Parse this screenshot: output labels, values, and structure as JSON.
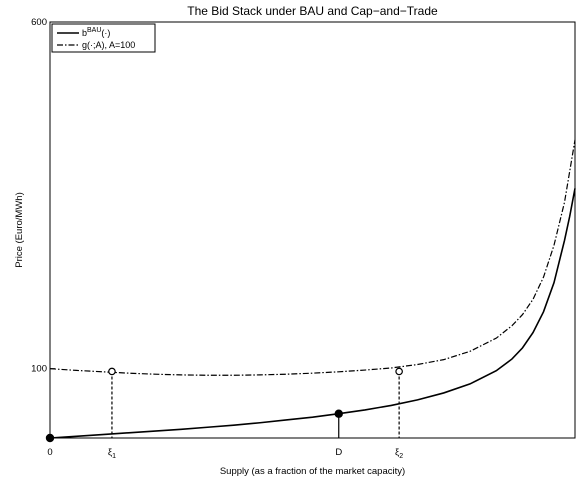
{
  "chart_data": {
    "type": "line",
    "title": "The Bid Stack under BAU and Cap−and−Trade",
    "xlabel": "Supply (as a fraction of the market capacity)",
    "ylabel": "Price (Euro/MWh)",
    "xlim": [
      0,
      1
    ],
    "ylim": [
      0,
      600
    ],
    "yticks": [
      {
        "value": 100,
        "label": "100"
      },
      {
        "value": 600,
        "label": "600"
      }
    ],
    "xticks": [
      {
        "value": 0,
        "label": "0"
      },
      {
        "value": 0.118,
        "label": "ξ",
        "sub": "1"
      },
      {
        "value": 0.55,
        "label": "D"
      },
      {
        "value": 0.665,
        "label": "ξ",
        "sub": "2"
      }
    ],
    "series": [
      {
        "name": "b",
        "name_sup": "BAU",
        "name_suffix": "(·)",
        "style": "solid",
        "x": [
          0,
          0.05,
          0.1,
          0.15,
          0.2,
          0.25,
          0.3,
          0.35,
          0.4,
          0.45,
          0.5,
          0.55,
          0.6,
          0.65,
          0.7,
          0.75,
          0.8,
          0.85,
          0.88,
          0.9,
          0.92,
          0.94,
          0.96,
          0.98,
          0.99,
          1.0
        ],
        "y": [
          0,
          2.5,
          5,
          7.5,
          10,
          12.5,
          15.5,
          18.5,
          22,
          26,
          30,
          35,
          40.5,
          47,
          55,
          65,
          78,
          97,
          114,
          130,
          152,
          182,
          224,
          285,
          320,
          360
        ]
      },
      {
        "name": "g(·;A), A=100",
        "style": "dashdot",
        "x": [
          0,
          0.05,
          0.1,
          0.15,
          0.2,
          0.25,
          0.3,
          0.35,
          0.4,
          0.45,
          0.5,
          0.55,
          0.6,
          0.65,
          0.7,
          0.75,
          0.8,
          0.85,
          0.88,
          0.9,
          0.92,
          0.94,
          0.96,
          0.98,
          0.99,
          1.0
        ],
        "y": [
          100,
          97.5,
          95.5,
          93.5,
          92,
          91,
          90.5,
          90.5,
          91,
          92,
          93.5,
          95.5,
          98,
          101,
          106,
          113,
          125,
          144,
          162,
          178,
          200,
          232,
          278,
          340,
          385,
          430
        ]
      }
    ],
    "points": [
      {
        "x": 0,
        "y": 0,
        "fill": "filled"
      },
      {
        "x": 0.55,
        "y": 35,
        "fill": "filled"
      },
      {
        "x": 0.118,
        "y": 96,
        "fill": "open"
      },
      {
        "x": 0.665,
        "y": 96,
        "fill": "open"
      }
    ],
    "droplines": [
      {
        "x": 0.118,
        "y": 96,
        "style": "dashed"
      },
      {
        "x": 0.665,
        "y": 96,
        "style": "dashed"
      },
      {
        "x": 0.55,
        "y": 35,
        "style": "solid"
      }
    ],
    "legend": {
      "position": "top-left"
    },
    "grid": false
  }
}
